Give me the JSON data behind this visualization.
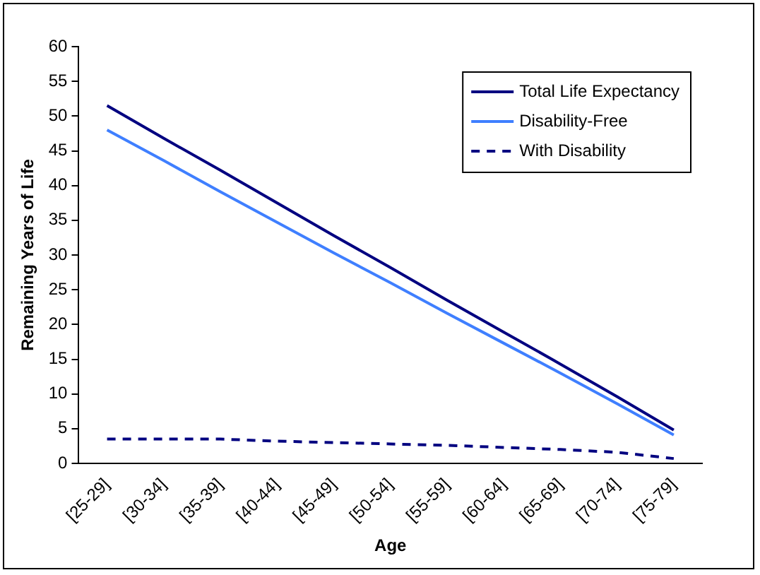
{
  "chart_data": {
    "type": "line",
    "xlabel": "Age",
    "ylabel": "Remaining Years of Life",
    "categories": [
      "[25-29]",
      "[30-34]",
      "[35-39]",
      "[40-44]",
      "[45-49]",
      "[50-54]",
      "[55-59]",
      "[60-64]",
      "[65-69]",
      "[70-74]",
      "[75-79]"
    ],
    "series": [
      {
        "name": "Total Life Expectancy",
        "color": "#000080",
        "values": [
          51.5,
          46.8,
          42.2,
          37.5,
          32.8,
          28.2,
          23.5,
          18.9,
          14.3,
          9.6,
          4.8
        ]
      },
      {
        "name": "Disability-Free",
        "color": "#3f7fff",
        "values": [
          48,
          43.6,
          39.1,
          34.7,
          30.3,
          26,
          21.6,
          17.3,
          13,
          8.6,
          4.1
        ]
      },
      {
        "name": "With Disability",
        "color": "#000080",
        "line_style": "dashed",
        "values": [
          3.5,
          3.5,
          3.5,
          3.2,
          3,
          2.8,
          2.6,
          2.3,
          2,
          1.6,
          0.7
        ]
      }
    ],
    "ylim": [
      0,
      60
    ],
    "yticks": [
      0,
      5,
      10,
      15,
      20,
      25,
      30,
      35,
      40,
      45,
      50,
      55,
      60
    ],
    "grid": false,
    "legend": "top right",
    "marker": "none"
  }
}
